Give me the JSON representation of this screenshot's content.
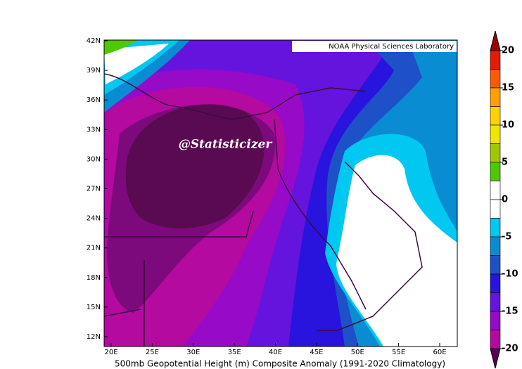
{
  "title": "500mb Geopotential Height (m) Composite Anomaly (1991-2020 Climatology)",
  "credit": "NOAA Physical Sciences Laboratory",
  "watermark": "@Statisticizer",
  "lat_labels": [
    "42N",
    "39N",
    "36N",
    "33N",
    "30N",
    "27N",
    "24N",
    "21N",
    "18N",
    "15N",
    "12N"
  ],
  "lon_labels": [
    "20E",
    "25E",
    "30E",
    "35E",
    "40E",
    "45E",
    "50E",
    "55E",
    "60E"
  ],
  "colorbar": {
    "lim": [
      -20,
      20
    ],
    "ticks": [
      20,
      15,
      10,
      5,
      0,
      -5,
      -10,
      -15,
      -20
    ],
    "over_color": "#a00000",
    "under_color": "#5a0050",
    "colors": [
      "#e11e00",
      "#ff5a00",
      "#ffa000",
      "#ffd200",
      "#f0e600",
      "#a0c800",
      "#50c800",
      "#ffffff",
      "#ffffff",
      "#00c8f0",
      "#0a8cd2",
      "#1e50c8",
      "#2814dc",
      "#6414dc",
      "#960ac8",
      "#b40aa0"
    ]
  }
}
